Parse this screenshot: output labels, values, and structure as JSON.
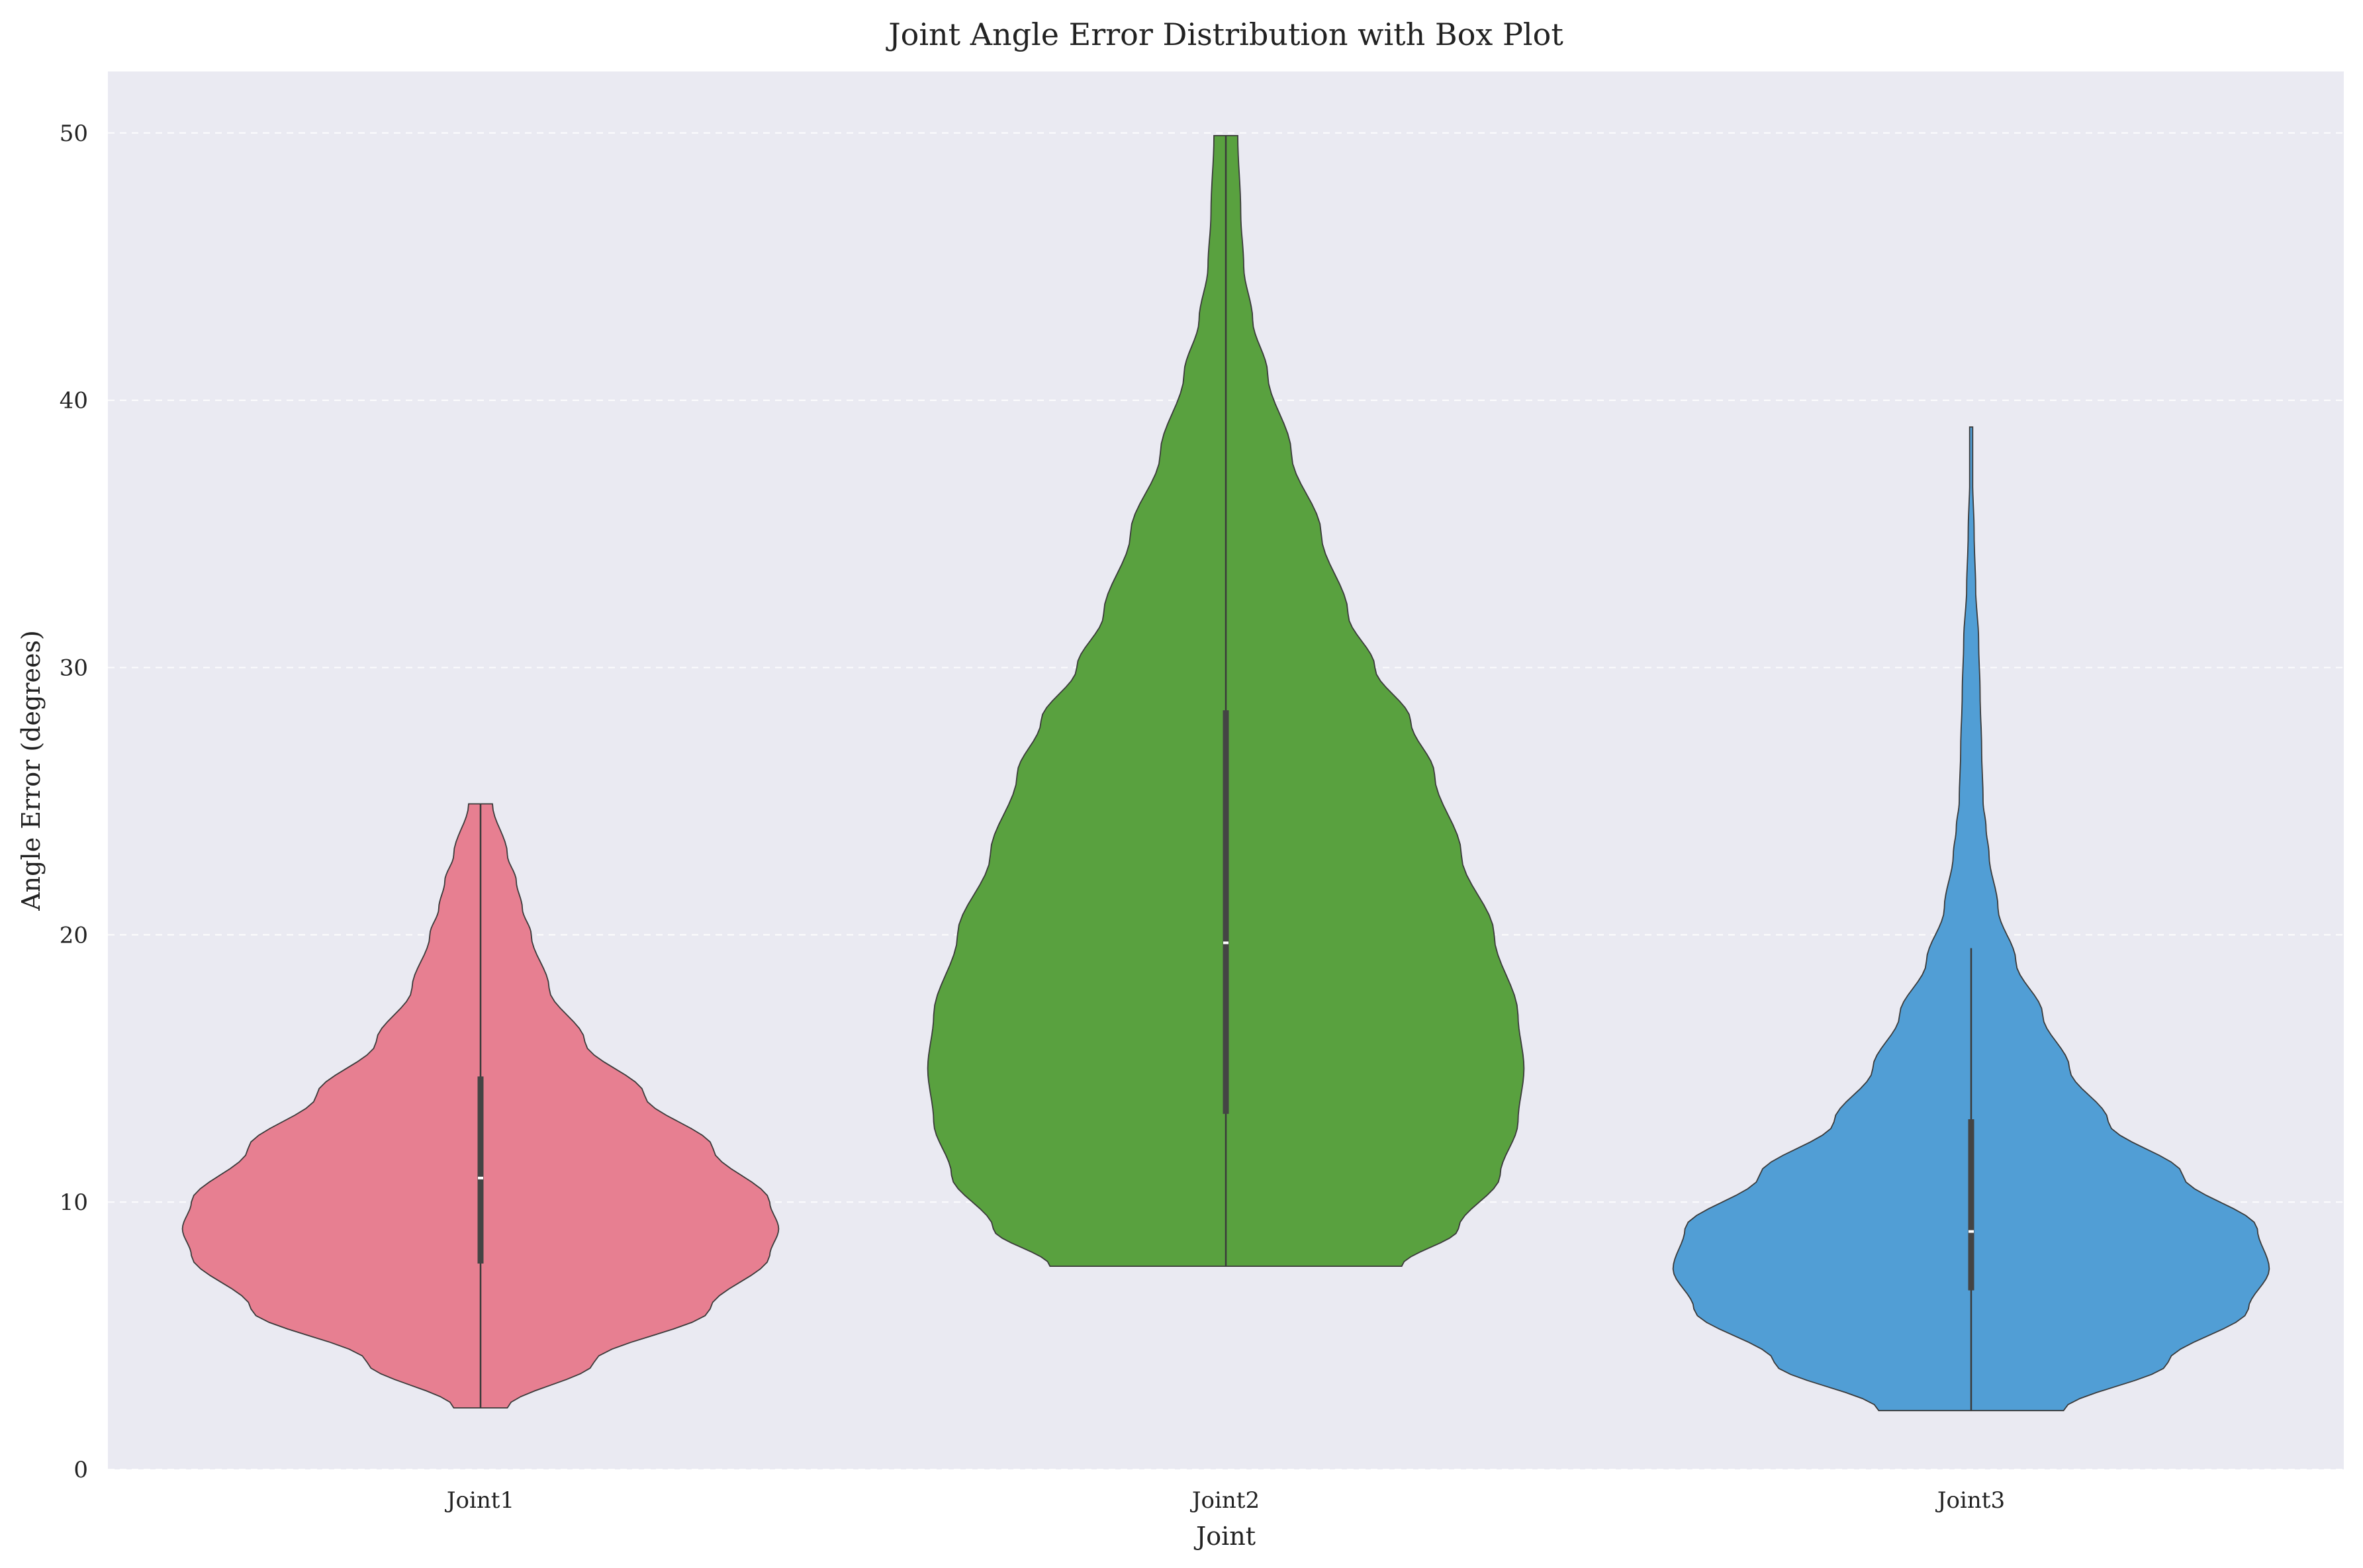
{
  "chart_data": {
    "type": "violin",
    "title": "Joint Angle Error Distribution with Box Plot",
    "xlabel": "Joint",
    "ylabel": "Angle Error (degrees)",
    "ylim": [
      0,
      52.3
    ],
    "yticks": [
      0,
      10,
      20,
      30,
      40,
      50
    ],
    "grid": true,
    "categories": [
      "Joint1",
      "Joint2",
      "Joint3"
    ],
    "colors": [
      "#e77f91",
      "#59a13f",
      "#519ed5"
    ],
    "series": [
      {
        "category": "Joint1",
        "min": 2.3,
        "q1": 7.7,
        "median": 10.9,
        "q3": 14.7,
        "max": 24.9,
        "density_profile": [
          [
            2.3,
            0.09
          ],
          [
            4.0,
            0.38
          ],
          [
            6.0,
            0.77
          ],
          [
            8.0,
            0.97
          ],
          [
            9.0,
            1.0
          ],
          [
            10.0,
            0.97
          ],
          [
            12.0,
            0.78
          ],
          [
            14.0,
            0.55
          ],
          [
            16.0,
            0.35
          ],
          [
            18.0,
            0.23
          ],
          [
            20.0,
            0.17
          ],
          [
            21.0,
            0.14
          ],
          [
            22.0,
            0.12
          ],
          [
            23.0,
            0.09
          ],
          [
            24.9,
            0.04
          ]
        ]
      },
      {
        "category": "Joint2",
        "min": 7.6,
        "q1": 13.3,
        "median": 19.7,
        "q3": 28.4,
        "max": 49.9,
        "density_profile": [
          [
            7.6,
            0.59
          ],
          [
            9.0,
            0.78
          ],
          [
            11.0,
            0.92
          ],
          [
            13.0,
            0.98
          ],
          [
            15.0,
            1.0
          ],
          [
            17.0,
            0.98
          ],
          [
            20.0,
            0.9
          ],
          [
            23.0,
            0.79
          ],
          [
            26.0,
            0.7
          ],
          [
            28.0,
            0.62
          ],
          [
            30.0,
            0.5
          ],
          [
            32.0,
            0.41
          ],
          [
            35.0,
            0.32
          ],
          [
            38.0,
            0.22
          ],
          [
            41.0,
            0.14
          ],
          [
            43.0,
            0.09
          ],
          [
            45.0,
            0.06
          ],
          [
            47.0,
            0.05
          ],
          [
            49.9,
            0.04
          ]
        ]
      },
      {
        "category": "Joint3",
        "min": 2.2,
        "q1": 6.7,
        "median": 8.9,
        "q3": 13.1,
        "max": 19.5,
        "outlier_extent_max": 39.0,
        "density_profile": [
          [
            2.2,
            0.31
          ],
          [
            4.0,
            0.66
          ],
          [
            6.0,
            0.93
          ],
          [
            7.5,
            1.0
          ],
          [
            9.0,
            0.96
          ],
          [
            11.0,
            0.71
          ],
          [
            13.0,
            0.46
          ],
          [
            15.0,
            0.33
          ],
          [
            17.0,
            0.24
          ],
          [
            19.0,
            0.15
          ],
          [
            21.0,
            0.09
          ],
          [
            23.0,
            0.06
          ],
          [
            24.0,
            0.05
          ],
          [
            25.0,
            0.04
          ],
          [
            27.0,
            0.035
          ],
          [
            29.0,
            0.03
          ],
          [
            31.0,
            0.025
          ],
          [
            33.0,
            0.015
          ],
          [
            35.0,
            0.01
          ],
          [
            37.0,
            0.005
          ],
          [
            39.0,
            0.005
          ]
        ]
      }
    ]
  }
}
